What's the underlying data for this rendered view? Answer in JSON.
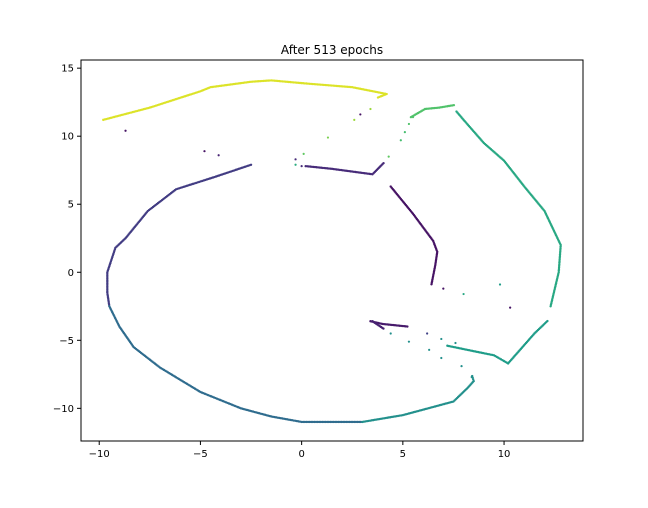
{
  "figure": {
    "title": "After 513 epochs"
  },
  "chart_data": {
    "type": "scatter",
    "title": "After 513 epochs",
    "xlabel": "",
    "ylabel": "",
    "xlim": [
      -10.9,
      13.9
    ],
    "ylim": [
      -12.4,
      15.6
    ],
    "xticks": [
      -10,
      -5,
      0,
      5,
      10
    ],
    "yticks": [
      -10,
      -5,
      0,
      5,
      10,
      15
    ],
    "xtick_labels": [
      "−10",
      "−5",
      "0",
      "5",
      "10"
    ],
    "ytick_labels": [
      "−10",
      "−5",
      "0",
      "5",
      "10",
      "15"
    ],
    "grid": false,
    "legend": "none",
    "colormap": "viridis",
    "paths": [
      {
        "color_value": 0.05,
        "points": [
          [
            4.4,
            6.3
          ],
          [
            5.5,
            4.3
          ],
          [
            6.5,
            2.3
          ],
          [
            6.7,
            1.5
          ],
          [
            6.6,
            0.5
          ],
          [
            6.4,
            -1.0
          ]
        ]
      },
      {
        "color_value": 0.07,
        "points": [
          [
            3.4,
            -3.6
          ],
          [
            3.7,
            -3.7
          ],
          [
            4.0,
            -3.8
          ],
          [
            5.3,
            -4.0
          ]
        ]
      },
      {
        "color_value": 0.09,
        "points": [
          [
            3.5,
            -3.6
          ],
          [
            3.8,
            -3.9
          ],
          [
            4.1,
            -4.2
          ]
        ]
      },
      {
        "color_value": 0.12,
        "points": [
          [
            0.2,
            7.8
          ],
          [
            1.5,
            7.6
          ],
          [
            3.5,
            7.2
          ],
          [
            4.1,
            8.1
          ]
        ]
      },
      {
        "color_value": 0.18,
        "points": [
          [
            -2.5,
            7.9
          ],
          [
            -4.3,
            7.0
          ],
          [
            -6.2,
            6.1
          ],
          [
            -7.6,
            4.5
          ],
          [
            -8.7,
            2.5
          ],
          [
            -9.2,
            1.8
          ],
          [
            -9.6,
            0.0
          ],
          [
            -9.6,
            -1.5
          ],
          [
            -9.5,
            -2.5
          ]
        ]
      },
      {
        "color_value": 0.35,
        "points": [
          [
            -9.5,
            -2.5
          ],
          [
            -9.0,
            -4.0
          ],
          [
            -8.3,
            -5.5
          ],
          [
            -7.0,
            -7.0
          ],
          [
            -5.0,
            -8.8
          ],
          [
            -3.0,
            -10.0
          ],
          [
            -1.5,
            -10.6
          ],
          [
            0.0,
            -11.0
          ],
          [
            1.5,
            -11.0
          ],
          [
            3.0,
            -11.0
          ]
        ]
      },
      {
        "color_value": 0.5,
        "points": [
          [
            3.0,
            -11.0
          ],
          [
            5.0,
            -10.5
          ],
          [
            7.5,
            -9.5
          ],
          [
            8.2,
            -8.5
          ],
          [
            8.5,
            -8.0
          ],
          [
            8.4,
            -7.5
          ]
        ]
      },
      {
        "color_value": 0.55,
        "points": [
          [
            7.2,
            -5.4
          ],
          [
            8.5,
            -5.8
          ],
          [
            9.5,
            -6.1
          ],
          [
            10.2,
            -6.7
          ],
          [
            11.5,
            -4.5
          ],
          [
            12.2,
            -3.5
          ]
        ]
      },
      {
        "color_value": 0.6,
        "points": [
          [
            12.3,
            -2.5
          ],
          [
            12.7,
            0.0
          ],
          [
            12.8,
            2.0
          ],
          [
            12.0,
            4.5
          ],
          [
            11.0,
            6.3
          ],
          [
            10.0,
            8.2
          ],
          [
            9.0,
            9.5
          ],
          [
            8.0,
            11.2
          ],
          [
            7.6,
            11.9
          ]
        ]
      },
      {
        "color_value": 0.72,
        "points": [
          [
            5.4,
            11.4
          ],
          [
            6.1,
            12.0
          ],
          [
            6.8,
            12.1
          ],
          [
            7.6,
            12.3
          ]
        ]
      },
      {
        "color_value": 0.95,
        "points": [
          [
            -9.8,
            11.2
          ],
          [
            -7.5,
            12.1
          ],
          [
            -5.0,
            13.3
          ],
          [
            -4.5,
            13.6
          ],
          [
            -2.5,
            14.0
          ],
          [
            -1.5,
            14.1
          ],
          [
            0.0,
            13.9
          ],
          [
            2.5,
            13.6
          ],
          [
            4.2,
            13.1
          ],
          [
            3.7,
            12.8
          ]
        ]
      }
    ],
    "scatter_points": [
      {
        "x": -8.7,
        "y": 10.4,
        "color_value": 0.05
      },
      {
        "x": -4.8,
        "y": 8.9,
        "color_value": 0.05
      },
      {
        "x": -4.1,
        "y": 8.6,
        "color_value": 0.1
      },
      {
        "x": -0.3,
        "y": 8.3,
        "color_value": 0.12
      },
      {
        "x": -0.3,
        "y": 7.9,
        "color_value": 0.62
      },
      {
        "x": 0.0,
        "y": 7.8,
        "color_value": 0.12
      },
      {
        "x": 0.1,
        "y": 8.7,
        "color_value": 0.75
      },
      {
        "x": 1.3,
        "y": 9.9,
        "color_value": 0.8
      },
      {
        "x": 2.6,
        "y": 11.2,
        "color_value": 0.85
      },
      {
        "x": 2.9,
        "y": 11.6,
        "color_value": 0.05
      },
      {
        "x": 3.4,
        "y": 12.0,
        "color_value": 0.85
      },
      {
        "x": 4.3,
        "y": 8.5,
        "color_value": 0.75
      },
      {
        "x": 4.9,
        "y": 9.7,
        "color_value": 0.7
      },
      {
        "x": 5.1,
        "y": 10.3,
        "color_value": 0.7
      },
      {
        "x": 5.3,
        "y": 10.9,
        "color_value": 0.72
      },
      {
        "x": 5.5,
        "y": 11.4,
        "color_value": 0.72
      },
      {
        "x": 7.0,
        "y": -1.2,
        "color_value": 0.05
      },
      {
        "x": 8.0,
        "y": -1.6,
        "color_value": 0.6
      },
      {
        "x": 9.8,
        "y": -0.9,
        "color_value": 0.55
      },
      {
        "x": 10.3,
        "y": -2.6,
        "color_value": 0.05
      },
      {
        "x": 4.4,
        "y": -4.5,
        "color_value": 0.5
      },
      {
        "x": 5.3,
        "y": -5.1,
        "color_value": 0.5
      },
      {
        "x": 6.2,
        "y": -4.5,
        "color_value": 0.2
      },
      {
        "x": 6.3,
        "y": -5.7,
        "color_value": 0.5
      },
      {
        "x": 6.9,
        "y": -4.9,
        "color_value": 0.5
      },
      {
        "x": 6.9,
        "y": -6.3,
        "color_value": 0.5
      },
      {
        "x": 7.6,
        "y": -5.2,
        "color_value": 0.5
      },
      {
        "x": 7.9,
        "y": -6.9,
        "color_value": 0.5
      },
      {
        "x": 8.4,
        "y": -7.7,
        "color_value": 0.5
      }
    ]
  }
}
